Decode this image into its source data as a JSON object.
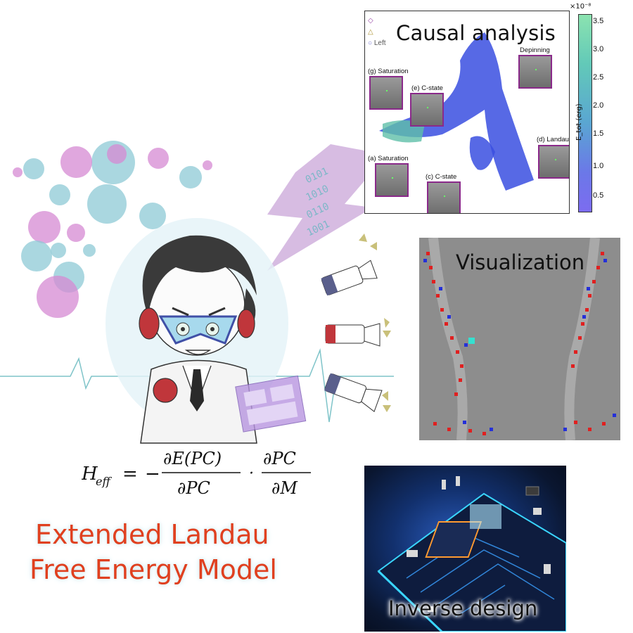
{
  "causal_panel": {
    "title": "Causal analysis",
    "legend": [
      "Left"
    ],
    "thumbnails": [
      {
        "label": "Depinning"
      },
      {
        "label": "(g) Saturation"
      },
      {
        "label": "(e) C-state"
      },
      {
        "label": "(d) Landau"
      },
      {
        "label": "(a) Saturation"
      },
      {
        "label": "(c) C-state"
      }
    ],
    "colorbar": {
      "exponent": "×10⁻⁸",
      "label": "E_tot (erg)",
      "ticks": [
        "3.5",
        "3.0",
        "2.5",
        "2.0",
        "1.5",
        "1.0",
        "0.5"
      ]
    }
  },
  "visualization_panel": {
    "title": "Visualization"
  },
  "inverse_design_panel": {
    "title": "Inverse design"
  },
  "equation": {
    "lhs": "H",
    "lhs_sub": "eff",
    "frac1_num": "∂E(PC)",
    "frac1_den": "∂PC",
    "frac2_num": "∂PC",
    "frac2_den": "∂M"
  },
  "headline": {
    "line1": "Extended Landau",
    "line2": "Free Energy Model"
  },
  "binary_text": "0101 1010 0110 1001",
  "colors": {
    "headline": "#e0401f",
    "bubble_pink": "#d58ad3",
    "bubble_blue": "#8ec9d6",
    "lightning": "#c9a6d8",
    "thumb_border": "#8a2a8a"
  }
}
